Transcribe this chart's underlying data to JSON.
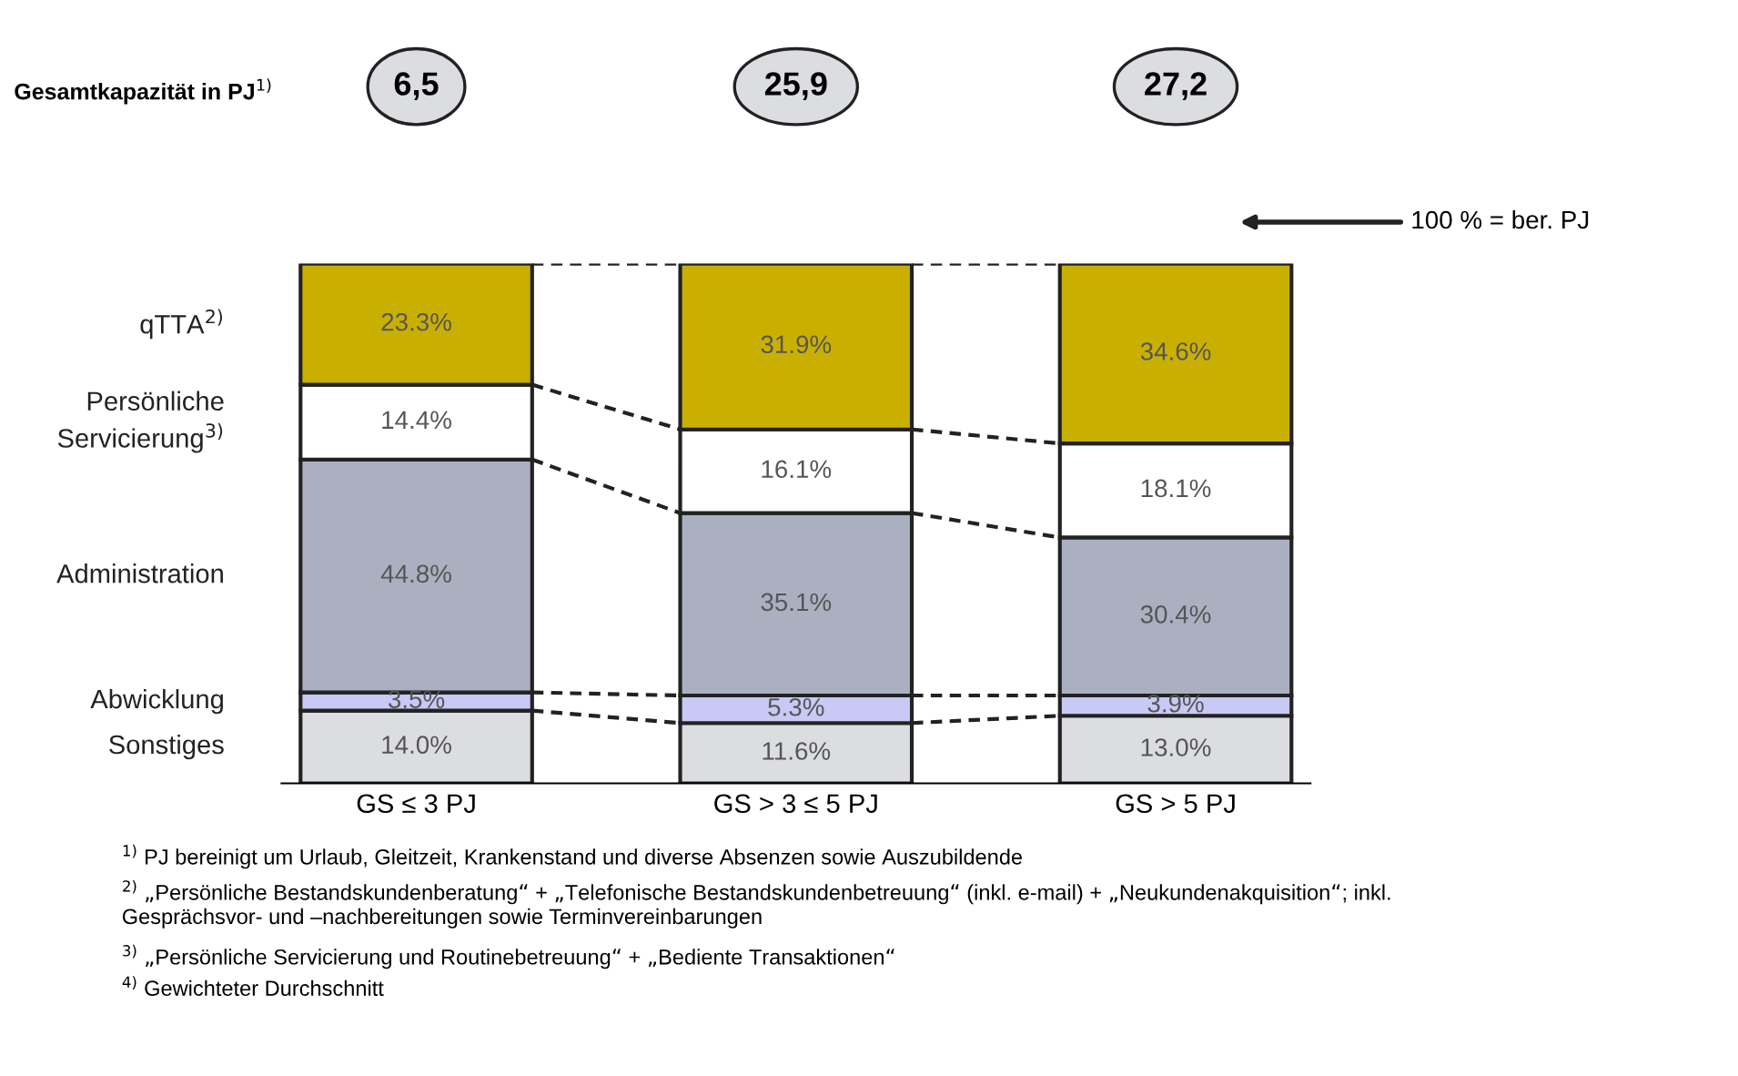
{
  "chart_data": {
    "type": "bar",
    "stacked": true,
    "title": "Gesamtkapazität in PJ$^{1)}$",
    "categories": [
      "GS ≤ 3 PJ",
      "GS > 3 ≤ 5 PJ",
      "GS > 5 PJ"
    ],
    "series": [
      {
        "name": "Sonstiges",
        "color": "#dcdde1",
        "values": [
          14.0,
          11.6,
          13.0
        ],
        "value_labels": [
          "14.0%",
          "11.6%",
          "13.0%"
        ]
      },
      {
        "name": "Abwicklung",
        "color": "#c9c9f5",
        "values": [
          3.5,
          5.3,
          3.9
        ],
        "value_labels": [
          "3.5%",
          "5.3%",
          "3.9%"
        ]
      },
      {
        "name": "Administration",
        "color": "#abb0c1",
        "values": [
          44.8,
          35.1,
          30.4
        ],
        "value_labels": [
          "44.8%",
          "35.1%",
          "30.4%"
        ]
      },
      {
        "name": "Persönliche\nServicierung$^{3)}$",
        "color": "#ffffff",
        "values": [
          14.4,
          16.1,
          18.1
        ],
        "value_labels": [
          "14.4%",
          "16.1%",
          "18.1%"
        ]
      },
      {
        "name": "qTTA$^{2)}$",
        "color": "#c9b000",
        "values": [
          23.3,
          31.9,
          34.6
        ],
        "value_labels": [
          "23.3%",
          "31.9%",
          "34.6%"
        ]
      }
    ],
    "ylim": [
      0,
      100
    ],
    "tick_labels": "x",
    "annotations": [
      "100 % = ber. PJ",
      "6,5",
      "25,9",
      "27,2",
      "$^{1)}$ PJ bereinigt um Urlaub, Gleitzeit, Krankenstand und diverse Absenzen sowie Auszubildende",
      "$^{2)}$ „Persönliche Bestandskundenberatung“ + „Telefonische Bestandskundenbetreuung“ (inkl. e-mail) + „Neukundenakquisition“; inkl.\nGesprächsvor- und –nachbereitungen sowie Terminvereinbarungen",
      "$^{3)}$ „Persönliche Servicierung und Routinebetreuung“ + „Bediente Transaktionen“",
      "$^{4)}$ Gewichteter Durchschnitt"
    ]
  }
}
